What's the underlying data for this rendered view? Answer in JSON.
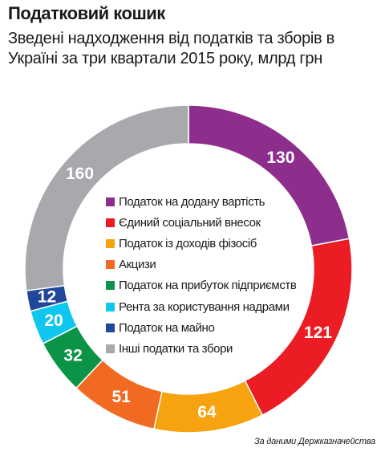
{
  "header": {
    "title": "Податковий кошик",
    "subtitle": "Зведені надходження від податків та зборів в Україні за три квартали 2015 року, млрд грн"
  },
  "chart_data": {
    "type": "pie",
    "donut": true,
    "title": "Податковий кошик",
    "subtitle": "Зведені надходження від податків та зборів в Україні за три квартали 2015 року, млрд грн",
    "unit": "млрд грн",
    "legend_position": "center",
    "slices": [
      {
        "label": "Податок на додану вартість",
        "value": 130,
        "color": "#8e2e8c"
      },
      {
        "label": "Єдиний соціальний внесок",
        "value": 121,
        "color": "#ec1c24"
      },
      {
        "label": "Податок із доходів фізосіб",
        "value": 64,
        "color": "#f7a30f"
      },
      {
        "label": "Акцизи",
        "value": 51,
        "color": "#f26a21"
      },
      {
        "label": "Податок на прибуток підприємств",
        "value": 32,
        "color": "#0b9448"
      },
      {
        "label": "Рента за користування надрами",
        "value": 20,
        "color": "#0fc6ee"
      },
      {
        "label": "Податок на майно",
        "value": 12,
        "color": "#21479b"
      },
      {
        "label": "Інші податки та збори",
        "value": 160,
        "color": "#a7a9ac"
      }
    ]
  },
  "footer": {
    "source": "За даними Держказначейства"
  }
}
